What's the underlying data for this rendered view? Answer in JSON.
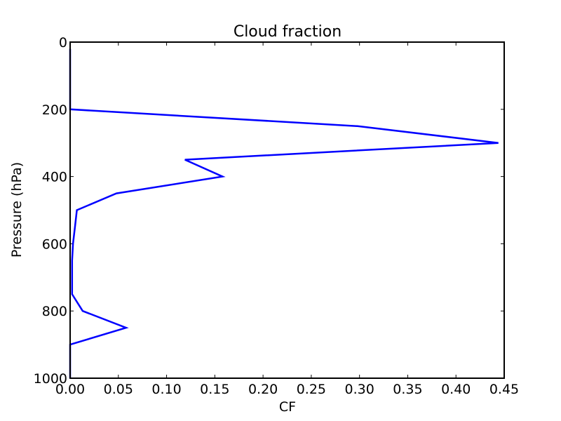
{
  "chart_data": {
    "type": "line",
    "title": "Cloud fraction",
    "xlabel": "CF",
    "ylabel": "Pressure (hPa)",
    "xlim": [
      0,
      0.45
    ],
    "ylim": [
      1000,
      0
    ],
    "y_inverted": true,
    "grid": false,
    "legend": "none",
    "line_color": "#0000ff",
    "xticks": [
      "0.00",
      "0.05",
      "0.10",
      "0.15",
      "0.20",
      "0.25",
      "0.30",
      "0.35",
      "0.40",
      "0.45"
    ],
    "yticks": [
      "0",
      "200",
      "400",
      "600",
      "800",
      "1000"
    ],
    "series": [
      {
        "x": [
          0.0,
          0.0,
          0.0,
          0.298,
          0.444,
          0.119,
          0.158,
          0.048,
          0.007,
          0.005,
          0.003,
          0.002,
          0.002,
          0.013,
          0.058,
          0.0,
          0.0
        ],
        "y": [
          20,
          100,
          200,
          250,
          300,
          350,
          400,
          450,
          500,
          550,
          600,
          650,
          750,
          800,
          850,
          900,
          1000
        ]
      }
    ]
  }
}
